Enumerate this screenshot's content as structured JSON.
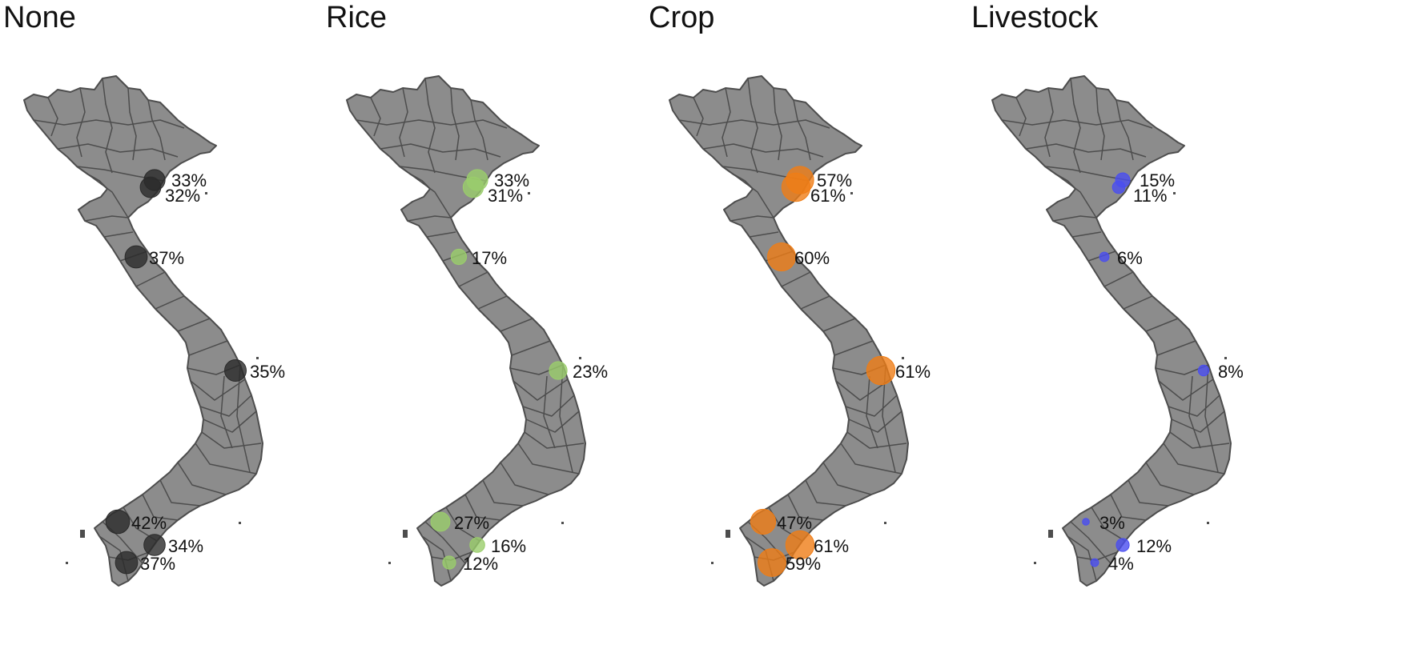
{
  "colors": {
    "land": "#8c8c8c",
    "border": "#4d4d4d",
    "text": "#111111"
  },
  "panels": [
    {
      "title": "None",
      "color": "#2b2b2b",
      "sites": [
        {
          "value": 33,
          "label": "33%"
        },
        {
          "value": 32,
          "label": "32%"
        },
        {
          "value": 37,
          "label": "37%"
        },
        {
          "value": 35,
          "label": "35%"
        },
        {
          "value": 42,
          "label": "42%"
        },
        {
          "value": 34,
          "label": "34%"
        },
        {
          "value": 37,
          "label": "37%"
        }
      ]
    },
    {
      "title": "Rice",
      "color": "#9acd6b",
      "sites": [
        {
          "value": 33,
          "label": "33%"
        },
        {
          "value": 31,
          "label": "31%"
        },
        {
          "value": 17,
          "label": "17%"
        },
        {
          "value": 23,
          "label": "23%"
        },
        {
          "value": 27,
          "label": "27%"
        },
        {
          "value": 16,
          "label": "16%"
        },
        {
          "value": 12,
          "label": "12%"
        }
      ]
    },
    {
      "title": "Crop",
      "color": "#ef7d16",
      "sites": [
        {
          "value": 57,
          "label": "57%"
        },
        {
          "value": 61,
          "label": "61%"
        },
        {
          "value": 60,
          "label": "60%"
        },
        {
          "value": 61,
          "label": "61%"
        },
        {
          "value": 47,
          "label": "47%"
        },
        {
          "value": 61,
          "label": "61%"
        },
        {
          "value": 59,
          "label": "59%"
        }
      ]
    },
    {
      "title": "Livestock",
      "color": "#4a4ef0",
      "sites": [
        {
          "value": 15,
          "label": "15%"
        },
        {
          "value": 11,
          "label": "11%"
        },
        {
          "value": 6,
          "label": "6%"
        },
        {
          "value": 8,
          "label": "8%"
        },
        {
          "value": 3,
          "label": "3%"
        },
        {
          "value": 12,
          "label": "12%"
        },
        {
          "value": 4,
          "label": "4%"
        }
      ]
    }
  ]
}
